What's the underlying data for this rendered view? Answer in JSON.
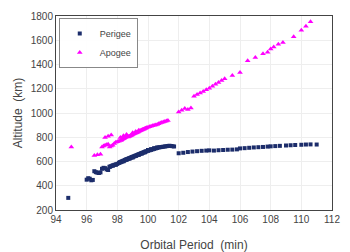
{
  "chart_data": {
    "type": "scatter",
    "xlabel": "Orbital Period  (min)",
    "ylabel": "Altitude  (km)",
    "xlim": [
      94,
      112
    ],
    "ylim": [
      200,
      1800
    ],
    "xticks": [
      94,
      96,
      98,
      100,
      102,
      104,
      106,
      108,
      110,
      112
    ],
    "yticks": [
      200,
      400,
      600,
      800,
      1000,
      1200,
      1400,
      1600,
      1800
    ],
    "grid": true,
    "legend": "upper left",
    "series": [
      {
        "name": "Perigee",
        "color": "#1c2d6b",
        "marker": "square",
        "x": [
          94.8,
          96.0,
          96.1,
          96.2,
          96.3,
          96.4,
          96.5,
          96.6,
          96.7,
          96.8,
          96.9,
          97.0,
          97.1,
          97.2,
          97.3,
          97.4,
          97.5,
          97.6,
          97.7,
          97.8,
          97.9,
          98.0,
          98.1,
          98.15,
          98.2,
          98.25,
          98.3,
          98.35,
          98.4,
          98.45,
          98.5,
          98.55,
          98.6,
          98.65,
          98.7,
          98.75,
          98.8,
          98.85,
          98.9,
          98.95,
          99.0,
          99.05,
          99.1,
          99.15,
          99.2,
          99.25,
          99.3,
          99.35,
          99.4,
          99.45,
          99.5,
          99.55,
          99.6,
          99.65,
          99.7,
          99.75,
          99.8,
          99.85,
          99.9,
          100.0,
          100.1,
          100.2,
          100.3,
          100.4,
          100.5,
          100.6,
          100.7,
          100.8,
          100.9,
          101.0,
          101.1,
          101.2,
          101.3,
          101.4,
          101.5,
          101.6,
          101.7,
          98.2,
          98.4,
          98.6,
          98.8,
          99.0,
          99.2,
          99.4,
          99.6,
          99.8,
          97.5,
          97.7,
          97.9,
          100.0,
          100.2,
          100.4,
          100.6,
          102.0,
          102.3,
          102.6,
          102.9,
          103.2,
          103.5,
          103.8,
          104.0,
          104.3,
          104.6,
          104.9,
          105.2,
          105.5,
          105.8,
          106.0,
          106.3,
          106.6,
          106.9,
          107.2,
          107.5,
          107.8,
          108.0,
          108.3,
          108.6,
          109.0,
          109.3,
          109.6,
          110.0,
          110.3,
          110.6,
          111.0
        ],
        "values": [
          300,
          450,
          462,
          458,
          445,
          448,
          520,
          512,
          508,
          505,
          510,
          540,
          548,
          545,
          535,
          530,
          558,
          562,
          568,
          572,
          576,
          580,
          588,
          592,
          596,
          598,
          600,
          603,
          606,
          608,
          612,
          615,
          618,
          620,
          622,
          625,
          628,
          630,
          633,
          636,
          638,
          641,
          643,
          646,
          648,
          651,
          654,
          656,
          659,
          661,
          664,
          667,
          669,
          672,
          674,
          677,
          680,
          682,
          685,
          688,
          692,
          696,
          700,
          704,
          708,
          712,
          716,
          718,
          720,
          722,
          724,
          726,
          728,
          730,
          728,
          726,
          724,
          594,
          602,
          614,
          624,
          633,
          645,
          655,
          666,
          676,
          555,
          565,
          573,
          695,
          702,
          710,
          716,
          668,
          672,
          678,
          682,
          685,
          688,
          690,
          692,
          690,
          693,
          695,
          697,
          698,
          700,
          708,
          710,
          713,
          716,
          718,
          720,
          723,
          725,
          727,
          729,
          732,
          734,
          736,
          738,
          740,
          741,
          740
        ]
      },
      {
        "name": "Apogee",
        "color": "#ff00ff",
        "marker": "triangle-up",
        "x": [
          95.0,
          96.5,
          96.7,
          96.9,
          97.0,
          97.1,
          97.2,
          97.3,
          97.4,
          97.5,
          97.6,
          97.7,
          97.8,
          97.9,
          98.0,
          98.1,
          98.2,
          98.25,
          98.3,
          98.35,
          98.4,
          98.45,
          98.5,
          98.55,
          98.6,
          98.65,
          98.7,
          98.75,
          98.8,
          98.85,
          98.9,
          98.95,
          99.0,
          99.05,
          99.1,
          99.15,
          99.2,
          99.25,
          99.3,
          99.35,
          99.4,
          99.45,
          99.5,
          99.55,
          99.6,
          99.65,
          99.7,
          99.75,
          99.8,
          99.85,
          99.9,
          100.0,
          100.1,
          100.2,
          100.3,
          100.4,
          100.5,
          100.6,
          100.7,
          100.8,
          100.9,
          101.0,
          101.1,
          101.2,
          101.3,
          97.2,
          97.4,
          97.6,
          98.2,
          98.4,
          98.6,
          99.0,
          99.2,
          99.4,
          102.0,
          102.2,
          102.4,
          102.6,
          102.8,
          103.0,
          103.2,
          103.4,
          103.6,
          103.8,
          104.0,
          104.2,
          104.4,
          104.6,
          104.8,
          105.0,
          105.5,
          106.0,
          106.5,
          107.0,
          107.5,
          107.8,
          108.0,
          108.2,
          108.5,
          108.8,
          109.5,
          110.0,
          110.3,
          110.6
        ],
        "values": [
          720,
          650,
          655,
          660,
          720,
          728,
          735,
          738,
          742,
          720,
          728,
          735,
          748,
          758,
          762,
          768,
          773,
          776,
          780,
          785,
          788,
          792,
          796,
          800,
          804,
          808,
          802,
          806,
          809,
          812,
          815,
          818,
          822,
          826,
          829,
          832,
          835,
          838,
          841,
          844,
          848,
          851,
          854,
          857,
          860,
          863,
          866,
          869,
          872,
          875,
          878,
          882,
          886,
          890,
          894,
          898,
          902,
          906,
          912,
          918,
          922,
          926,
          930,
          934,
          938,
          798,
          808,
          818,
          798,
          812,
          822,
          838,
          848,
          858,
          1008,
          1022,
          1038,
          1028,
          1042,
          1138,
          1152,
          1165,
          1178,
          1192,
          1205,
          1220,
          1238,
          1252,
          1268,
          1282,
          1310,
          1335,
          1430,
          1458,
          1488,
          1502,
          1528,
          1545,
          1568,
          1582,
          1628,
          1682,
          1715,
          1752
        ]
      }
    ]
  }
}
